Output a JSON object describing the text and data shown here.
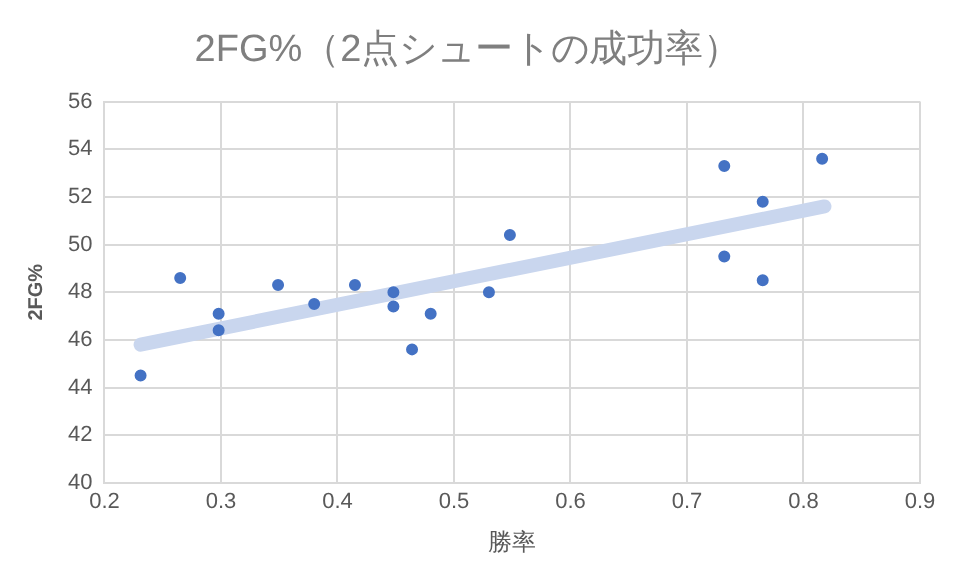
{
  "chart_data": {
    "type": "scatter",
    "title": "2FG%（2点シュートの成功率）",
    "xlabel": "勝率",
    "ylabel": "2FG%",
    "xlim": [
      0.2,
      0.9
    ],
    "xticks": [
      0.2,
      0.3,
      0.4,
      0.5,
      0.6,
      0.7,
      0.8,
      0.9
    ],
    "ylim": [
      40,
      56
    ],
    "yticks": [
      40,
      42,
      44,
      46,
      48,
      50,
      52,
      54,
      56
    ],
    "grid": true,
    "legend": false,
    "series": [
      {
        "color": "#4472c4",
        "marker": "circle",
        "x": [
          0.231,
          0.265,
          0.298,
          0.298,
          0.349,
          0.38,
          0.415,
          0.448,
          0.448,
          0.464,
          0.48,
          0.53,
          0.548,
          0.732,
          0.765,
          0.732,
          0.765,
          0.816
        ],
        "values": [
          44.5,
          48.6,
          47.1,
          46.4,
          48.3,
          47.5,
          48.3,
          48.0,
          47.4,
          45.6,
          47.1,
          48.0,
          50.4,
          53.3,
          51.8,
          49.5,
          48.5,
          53.6
        ]
      },
      {
        "type": "line",
        "color": "#c9d6ee",
        "marker": "none",
        "x": [
          0.231,
          0.818
        ],
        "values": [
          45.8,
          51.6
        ]
      }
    ]
  }
}
